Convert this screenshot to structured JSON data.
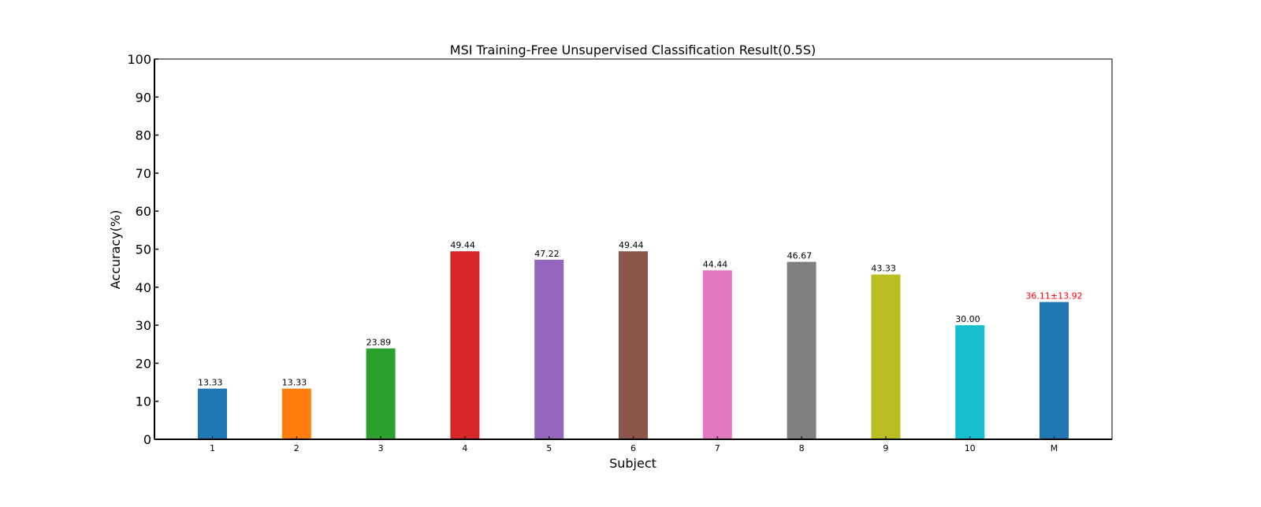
{
  "chart_data": {
    "type": "bar",
    "title": "MSI Training-Free Unsupervised Classification Result(0.5S)",
    "xlabel": "Subject",
    "ylabel": "Accuracy(%)",
    "ylim": [
      0,
      100
    ],
    "yticks": [
      0,
      10,
      20,
      30,
      40,
      50,
      60,
      70,
      80,
      90,
      100
    ],
    "grid": false,
    "categories": [
      "1",
      "2",
      "3",
      "4",
      "5",
      "6",
      "7",
      "8",
      "9",
      "10",
      "M"
    ],
    "values": [
      13.33,
      13.33,
      23.89,
      49.44,
      47.22,
      49.44,
      44.44,
      46.67,
      43.33,
      30.0,
      36.11
    ],
    "value_labels": [
      "13.33",
      "13.33",
      "23.89",
      "49.44",
      "47.22",
      "49.44",
      "44.44",
      "46.67",
      "43.33",
      "30.00",
      "36.11±13.92"
    ],
    "colors": [
      "#1f77b4",
      "#ff7f0e",
      "#2ca02c",
      "#d62728",
      "#9467bd",
      "#8c564b",
      "#e377c2",
      "#7f7f7f",
      "#bcbd22",
      "#17becf",
      "#1f77b4"
    ],
    "label_colors": [
      "#000000",
      "#000000",
      "#000000",
      "#000000",
      "#000000",
      "#000000",
      "#000000",
      "#000000",
      "#000000",
      "#000000",
      "#ff0000"
    ]
  }
}
